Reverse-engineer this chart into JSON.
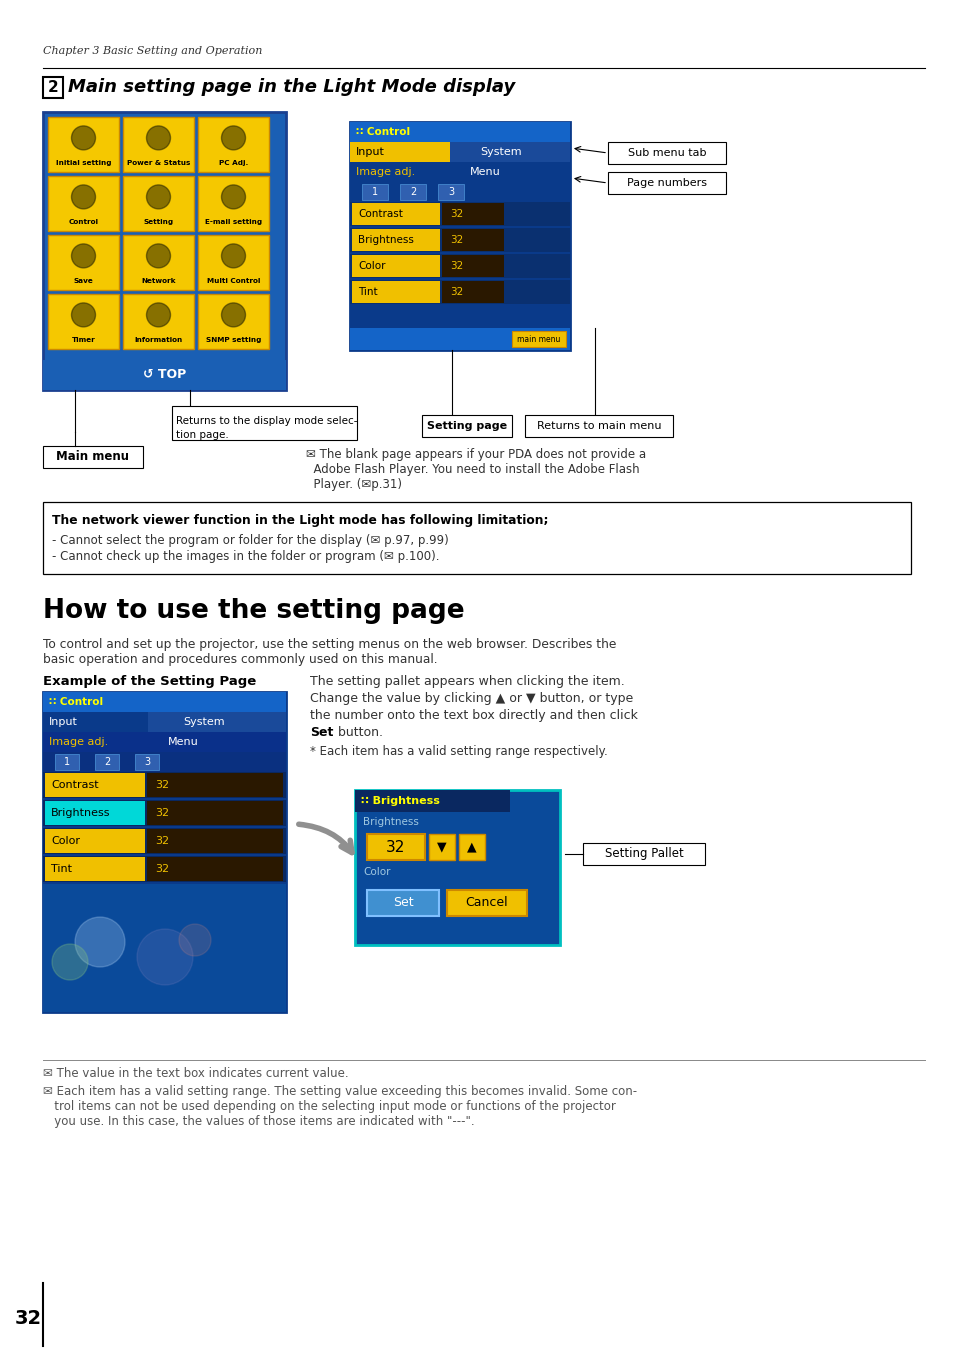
{
  "bg_color": "#ffffff",
  "page_width": 9.54,
  "page_height": 13.5,
  "chapter_text": "Chapter 3 Basic Setting and Operation",
  "section_num": "2",
  "section_title": "Main setting page in the Light Mode display",
  "how_to_title": "How to use the setting page",
  "how_to_body1": "To control and set up the projector, use the setting menus on the web browser. Describes the",
  "how_to_body2": "basic operation and procedures commonly used on this manual.",
  "example_label": "Example of the Setting Page",
  "setting_pallet_text1": "The setting pallet appears when clicking the item.",
  "setting_pallet_text2": "Change the value by clicking ▲ or ▼ button, or type",
  "setting_pallet_text3": "the number onto the text box directly and then click",
  "setting_pallet_text4_pre": "Set",
  "setting_pallet_text4_post": " button.",
  "asterisk_text": "* Each item has a valid setting range respectively.",
  "note1": "✉ The value in the text box indicates current value.",
  "note2_1": "✉ Each item has a valid setting range. The setting value exceeding this becomes invalid. Some con-",
  "note2_2": "   trol items can not be used depending on the selecting input mode or functions of the projector",
  "note2_3": "   you use. In this case, the values of those items are indicated with \"---\".",
  "limitation_title": "The network viewer function in the Light mode has following limitation;",
  "limitation1": "- Cannot select the program or folder for the display (✉ p.97, p.99)",
  "limitation2": "- Cannot check up the images in the folder or program (✉ p.100).",
  "sub_menu_tab": "Sub menu tab",
  "page_numbers_label": "Page numbers",
  "setting_page_label": "Setting page",
  "returns_main_menu": "Returns to main menu",
  "returns_display1": "Returns to the display mode selec-",
  "returns_display2": "tion page.",
  "main_menu_label": "Main menu",
  "blank_page_note1": "✉ The blank page appears if your PDA does not provide a",
  "blank_page_note2": "  Adobe Flash Player. You need to install the Adobe Flash",
  "blank_page_note3": "  Player. (✉p.31)",
  "setting_pallet_label": "Setting Pallet",
  "page_number": "32",
  "btn_labels": [
    [
      "Initial setting",
      "Power & Status",
      "PC Adj."
    ],
    [
      "Control",
      "Setting",
      "E-mail setting"
    ],
    [
      "Save",
      "Network",
      "Multi Control"
    ],
    [
      "Timer",
      "Information",
      "SNMP setting"
    ]
  ],
  "row_labels": [
    "Contrast",
    "Brightness",
    "Color",
    "Tint"
  ]
}
